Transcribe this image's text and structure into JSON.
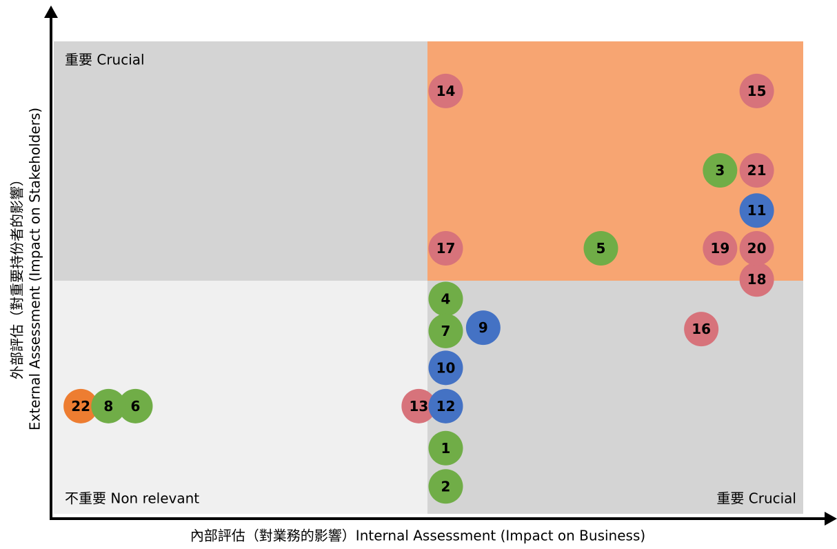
{
  "chart_data": {
    "type": "scatter",
    "x_label": "內部評估（對業務的影響）Internal Assessment (Impact on Business)",
    "y_label": [
      "外部評估（對重要持份者的影響）",
      "External Assessment (Impact on Stakeholders)"
    ],
    "quadrant_labels": {
      "top_left": "重要 Crucial",
      "bottom_left": "不重要 Non relevant",
      "bottom_right": "重要 Crucial"
    },
    "xlim": [
      0,
      100
    ],
    "ylim": [
      0,
      100
    ],
    "series": [
      {
        "color": "#ed7d31",
        "labels": [
          "22"
        ],
        "x": [
          3.6
        ],
        "values": [
          22.8
        ]
      },
      {
        "color": "#d7737b",
        "labels": [
          "13",
          "14",
          "15",
          "16",
          "17",
          "18",
          "19",
          "20",
          "21"
        ],
        "x": [
          48.7,
          52.3,
          93.8,
          86.4,
          52.3,
          93.8,
          88.9,
          93.8,
          93.8
        ],
        "values": [
          22.8,
          89.5,
          89.5,
          39.1,
          56.2,
          49.6,
          56.2,
          56.2,
          72.7
        ]
      },
      {
        "color": "#70ad47",
        "labels": [
          "1",
          "2",
          "3",
          "4",
          "5",
          "6",
          "7",
          "8"
        ],
        "x": [
          52.3,
          52.3,
          88.9,
          52.3,
          73.0,
          10.9,
          52.3,
          7.3
        ],
        "values": [
          13.9,
          5.8,
          72.7,
          45.5,
          56.2,
          22.8,
          38.7,
          22.8
        ]
      },
      {
        "color": "#4472c4",
        "labels": [
          "9",
          "10",
          "11",
          "12"
        ],
        "x": [
          57.3,
          52.3,
          93.8,
          52.3
        ],
        "values": [
          39.4,
          30.9,
          64.2,
          22.8
        ]
      }
    ]
  }
}
